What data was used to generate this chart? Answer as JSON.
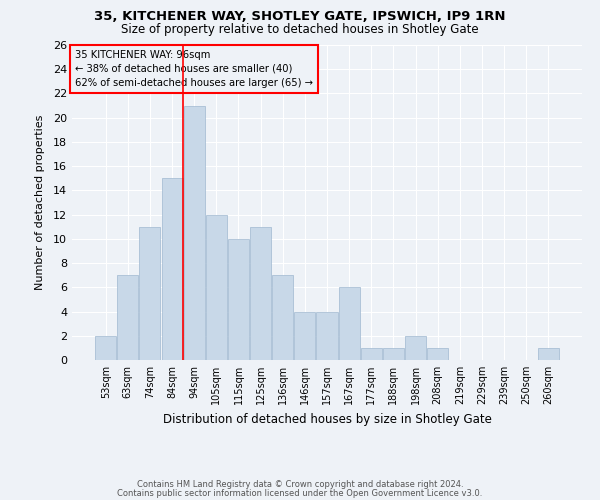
{
  "title_line1": "35, KITCHENER WAY, SHOTLEY GATE, IPSWICH, IP9 1RN",
  "title_line2": "Size of property relative to detached houses in Shotley Gate",
  "xlabel": "Distribution of detached houses by size in Shotley Gate",
  "ylabel": "Number of detached properties",
  "categories": [
    "53sqm",
    "63sqm",
    "74sqm",
    "84sqm",
    "94sqm",
    "105sqm",
    "115sqm",
    "125sqm",
    "136sqm",
    "146sqm",
    "157sqm",
    "167sqm",
    "177sqm",
    "188sqm",
    "198sqm",
    "208sqm",
    "219sqm",
    "229sqm",
    "239sqm",
    "250sqm",
    "260sqm"
  ],
  "values": [
    2,
    7,
    11,
    15,
    21,
    12,
    10,
    11,
    7,
    4,
    4,
    6,
    1,
    1,
    2,
    1,
    0,
    0,
    0,
    0,
    1
  ],
  "bar_color": "#c8d8e8",
  "bar_edgecolor": "#a0b8d0",
  "redline_index": 4,
  "annotation_text_line1": "35 KITCHENER WAY: 96sqm",
  "annotation_text_line2": "← 38% of detached houses are smaller (40)",
  "annotation_text_line3": "62% of semi-detached houses are larger (65) →",
  "ylim": [
    0,
    26
  ],
  "yticks": [
    0,
    2,
    4,
    6,
    8,
    10,
    12,
    14,
    16,
    18,
    20,
    22,
    24,
    26
  ],
  "background_color": "#eef2f7",
  "grid_color": "#ffffff",
  "footer_line1": "Contains HM Land Registry data © Crown copyright and database right 2024.",
  "footer_line2": "Contains public sector information licensed under the Open Government Licence v3.0."
}
